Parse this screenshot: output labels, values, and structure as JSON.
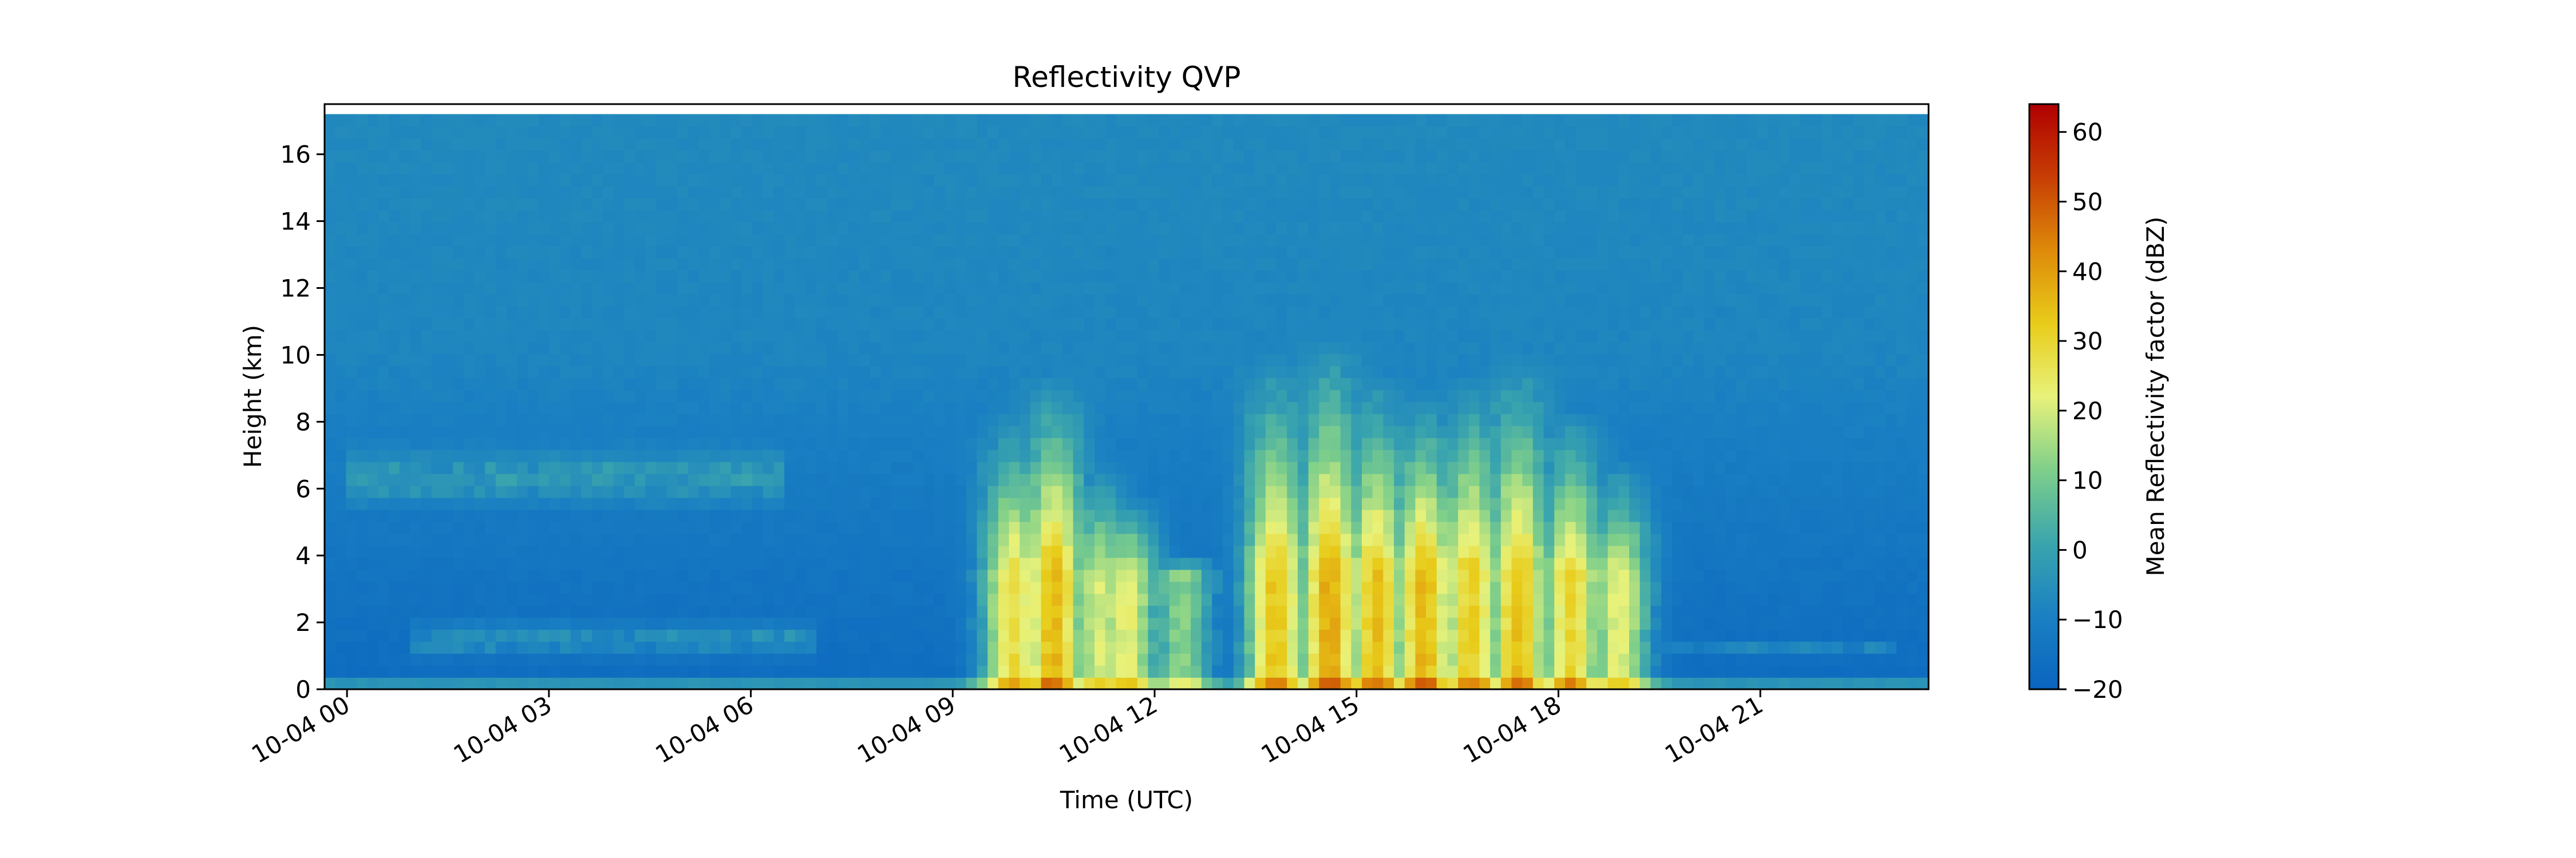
{
  "chart_data": {
    "type": "heatmap",
    "title": "Reflectivity QVP",
    "xlabel": "Time (UTC)",
    "ylabel": "Height (km)",
    "xlim": [
      "10-03 23:40",
      "10-04 23:30"
    ],
    "ylim": [
      0,
      17.5
    ],
    "data_top_km": 17.2,
    "x_tick_labels": [
      "10-04 00",
      "10-04 03",
      "10-04 06",
      "10-04 09",
      "10-04 12",
      "10-04 15",
      "10-04 18",
      "10-04 21"
    ],
    "x_tick_hours": [
      0,
      3,
      6,
      9,
      12,
      15,
      18,
      21
    ],
    "y_ticks": [
      0,
      2,
      4,
      6,
      8,
      10,
      12,
      14,
      16
    ],
    "colorbar": {
      "label": "Mean Reflectivity factor (dBZ)",
      "range": [
        -20,
        64
      ],
      "ticks": [
        -20,
        -10,
        0,
        10,
        20,
        30,
        40,
        50,
        60
      ],
      "tick_labels": [
        "−20",
        "−10",
        "0",
        "10",
        "20",
        "30",
        "40",
        "50",
        "60"
      ],
      "colormap": [
        "#0a64bf",
        "#1a80c2",
        "#3aa5ad",
        "#7fcf8a",
        "#e8f27a",
        "#e8cc1a",
        "#de8a0a",
        "#c73e04",
        "#b00000"
      ]
    },
    "convective_cells": [
      {
        "t_hour": 9.9,
        "dbz": 28,
        "top_km": 8.5
      },
      {
        "t_hour": 10.5,
        "dbz": 36,
        "top_km": 9.5
      },
      {
        "t_hour": 11.2,
        "dbz": 20,
        "top_km": 7.0
      },
      {
        "t_hour": 11.6,
        "dbz": 22,
        "top_km": 6.0
      },
      {
        "t_hour": 12.4,
        "dbz": 12,
        "top_km": 4.0
      },
      {
        "t_hour": 13.8,
        "dbz": 34,
        "top_km": 10.0
      },
      {
        "t_hour": 14.6,
        "dbz": 38,
        "top_km": 10.5
      },
      {
        "t_hour": 15.3,
        "dbz": 34,
        "top_km": 9.5
      },
      {
        "t_hour": 16.0,
        "dbz": 36,
        "top_km": 9.0
      },
      {
        "t_hour": 16.7,
        "dbz": 32,
        "top_km": 9.5
      },
      {
        "t_hour": 17.4,
        "dbz": 34,
        "top_km": 10.0
      },
      {
        "t_hour": 18.2,
        "dbz": 30,
        "top_km": 8.5
      },
      {
        "t_hour": 18.9,
        "dbz": 22,
        "top_km": 7.0
      }
    ],
    "stratiform_layers": [
      {
        "t_start": 0.0,
        "t_end": 6.5,
        "base_km": 5.2,
        "top_km": 7.5,
        "dbz": 0
      },
      {
        "t_start": 1.0,
        "t_end": 7.0,
        "base_km": 0.8,
        "top_km": 2.2,
        "dbz": -2
      },
      {
        "t_start": 19.5,
        "t_end": 23.0,
        "base_km": 0.9,
        "top_km": 1.6,
        "dbz": -6
      }
    ]
  }
}
